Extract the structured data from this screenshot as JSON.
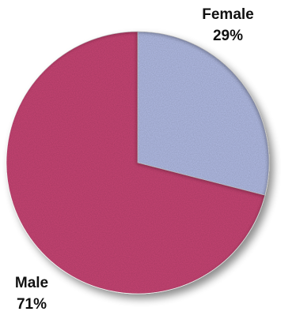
{
  "chart_data": {
    "type": "pie",
    "slices": [
      {
        "name": "Female",
        "value": 29,
        "value_label": "29%",
        "color": "#b3bde6"
      },
      {
        "name": "Male",
        "value": 71,
        "value_label": "71%",
        "color": "#c94474"
      }
    ],
    "start_angle_deg": 0,
    "direction": "clockwise",
    "exploded": false,
    "shadow": true,
    "legend": "none"
  }
}
